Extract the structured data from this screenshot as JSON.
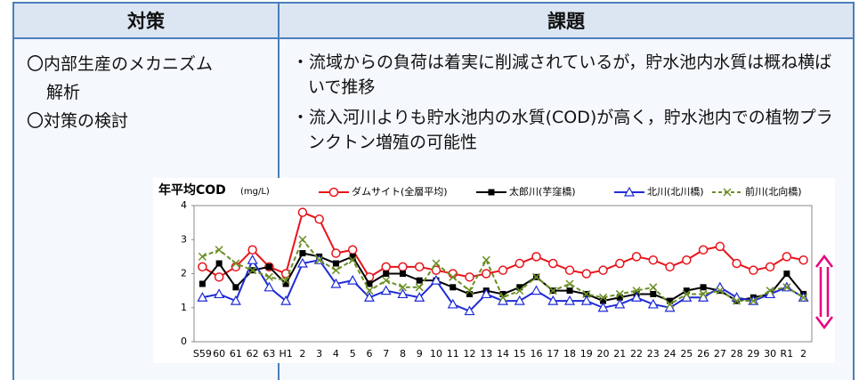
{
  "table": {
    "headers": [
      "対策",
      "課題"
    ],
    "left": [
      "〇内部生産のメカニズム",
      "解析",
      "〇対策の検討"
    ],
    "right": [
      "・流域からの負荷は着実に削減されているが，貯水池内水質は概ね横ばいで推移",
      "・流入河川よりも貯水池内の水質(COD)が高く，貯水池内での植物プランクトン増殖の可能性"
    ]
  },
  "chart_data": {
    "type": "line",
    "title": "年平均COD",
    "y_unit": "(mg/L)",
    "categories": [
      "S59",
      "60",
      "61",
      "62",
      "63",
      "H1",
      "2",
      "3",
      "4",
      "5",
      "6",
      "7",
      "8",
      "9",
      "10",
      "11",
      "12",
      "13",
      "14",
      "15",
      "16",
      "17",
      "18",
      "19",
      "20",
      "21",
      "22",
      "23",
      "24",
      "25",
      "26",
      "27",
      "28",
      "29",
      "30",
      "R1",
      "2"
    ],
    "ylim": [
      0,
      4
    ],
    "yticks": [
      0,
      1,
      2,
      3,
      4
    ],
    "grid": false,
    "series": [
      {
        "name": "ダムサイト(全層平均)",
        "color": "#e8141b",
        "marker": "circle",
        "dashed": false,
        "values": [
          2.2,
          1.9,
          2.2,
          2.7,
          2.2,
          2.0,
          3.8,
          3.6,
          2.6,
          2.7,
          1.9,
          2.2,
          2.2,
          2.2,
          2.1,
          2.0,
          1.9,
          2.0,
          2.1,
          2.3,
          2.5,
          2.3,
          2.1,
          2.0,
          2.1,
          2.3,
          2.5,
          2.4,
          2.2,
          2.4,
          2.7,
          2.8,
          2.3,
          2.1,
          2.2,
          2.5,
          2.4
        ]
      },
      {
        "name": "太郎川(芋窪橋)",
        "color": "#000000",
        "marker": "square",
        "dashed": false,
        "values": [
          1.7,
          2.3,
          1.6,
          2.1,
          2.2,
          1.7,
          2.6,
          2.5,
          2.3,
          2.5,
          1.7,
          2.0,
          2.0,
          1.8,
          1.8,
          1.6,
          1.4,
          1.5,
          1.4,
          1.6,
          1.9,
          1.5,
          1.5,
          1.4,
          1.2,
          1.3,
          1.4,
          1.4,
          1.2,
          1.5,
          1.6,
          1.5,
          1.2,
          1.3,
          1.4,
          2.0,
          1.4
        ]
      },
      {
        "name": "北川(北川橋)",
        "color": "#1f2bd6",
        "marker": "triangle",
        "dashed": false,
        "values": [
          1.3,
          1.4,
          1.2,
          2.4,
          1.6,
          1.2,
          2.3,
          2.4,
          1.7,
          1.8,
          1.3,
          1.5,
          1.4,
          1.3,
          1.8,
          1.1,
          0.9,
          1.4,
          1.2,
          1.2,
          1.5,
          1.2,
          1.2,
          1.2,
          1.0,
          1.1,
          1.3,
          1.1,
          1.0,
          1.3,
          1.3,
          1.6,
          1.3,
          1.2,
          1.4,
          1.6,
          1.3
        ]
      },
      {
        "name": "前川(北向橋)",
        "color": "#6b8e23",
        "marker": "cross",
        "dashed": true,
        "values": [
          2.5,
          2.7,
          2.3,
          2.1,
          1.9,
          1.8,
          3.0,
          2.4,
          2.1,
          2.4,
          1.5,
          1.8,
          1.6,
          1.6,
          2.3,
          1.9,
          1.5,
          2.4,
          1.3,
          1.5,
          1.9,
          1.5,
          1.7,
          1.4,
          1.3,
          1.4,
          1.5,
          1.6,
          1.1,
          1.4,
          1.4,
          1.5,
          1.2,
          1.2,
          1.5,
          1.6,
          1.3
        ]
      }
    ]
  }
}
